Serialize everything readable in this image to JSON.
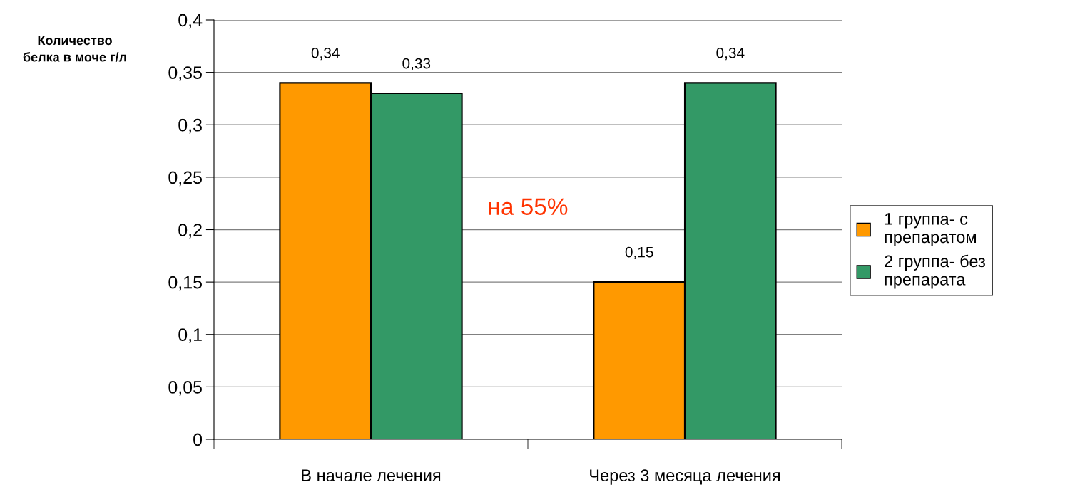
{
  "chart_data": {
    "type": "bar",
    "ylabel": "Количество\nбелка в моче г/л",
    "categories": [
      "В начале лечения",
      "Через 3 месяца лечения"
    ],
    "series": [
      {
        "name": "1 группа- с\nпрепаратом",
        "color": "#ff9900",
        "values": [
          0.34,
          0.15
        ],
        "value_labels": [
          "0,34",
          "0,15"
        ]
      },
      {
        "name": "2 группа- без\nпрепарата",
        "color": "#339966",
        "values": [
          0.33,
          0.34
        ],
        "value_labels": [
          "0,33",
          "0,34"
        ]
      }
    ],
    "ylim": [
      0,
      0.4
    ],
    "yticks": [
      0,
      {
        "value": 0.05,
        "label": "0,05"
      },
      {
        "value": 0.1,
        "label": "0,1"
      },
      {
        "value": 0.15,
        "label": "0,15"
      },
      {
        "value": 0.2,
        "label": "0,2"
      },
      {
        "value": 0.25,
        "label": "0,25"
      },
      {
        "value": 0.3,
        "label": "0,3"
      },
      {
        "value": 0.35,
        "label": "0,35"
      },
      {
        "value": 0.4,
        "label": "0,4"
      }
    ],
    "grid": "y",
    "legend": "right",
    "annotations": [
      "на 55%"
    ]
  }
}
